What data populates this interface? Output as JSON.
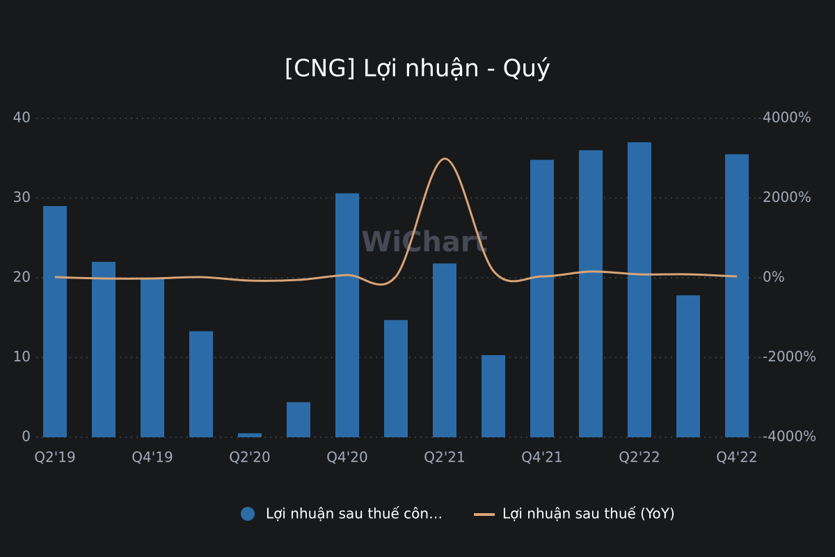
{
  "chart_data": {
    "type": "bar",
    "title": "[CNG] Lợi nhuận - Quý",
    "watermark": "WiChart",
    "categories": [
      "Q2'19",
      null,
      "Q4'19",
      null,
      "Q2'20",
      null,
      "Q4'20",
      null,
      "Q2'21",
      null,
      "Q4'21",
      null,
      "Q2'22",
      null,
      "Q4'22"
    ],
    "series": [
      {
        "name": "Lợi nhuận sau thuế côn…",
        "type": "bar",
        "color": "#2b6ca8",
        "values": [
          29.0,
          22.0,
          19.9,
          13.3,
          0.5,
          4.4,
          30.6,
          14.7,
          21.8,
          10.3,
          34.8,
          36.0,
          37.0,
          17.8,
          35.5
        ]
      },
      {
        "name": "Lợi nhuận sau thuế (YoY)",
        "type": "line",
        "axis": "y2",
        "color": "#d9a577",
        "values": [
          17,
          -17,
          -17,
          17,
          -70,
          -52,
          70,
          35,
          2990,
          175,
          35,
          157,
          87,
          87,
          35
        ]
      }
    ],
    "ylim": [
      0,
      40
    ],
    "yticks": [
      0,
      10,
      20,
      30,
      40
    ],
    "y2lim": [
      -4000,
      4000
    ],
    "y2ticks": [
      {
        "value": -4000,
        "label": "-4000%"
      },
      {
        "value": -2000,
        "label": "-2000%"
      },
      {
        "value": 0,
        "label": "0%"
      },
      {
        "value": 2000,
        "label": "2000%"
      },
      {
        "value": 4000,
        "label": "4000%"
      }
    ],
    "grid": true
  }
}
